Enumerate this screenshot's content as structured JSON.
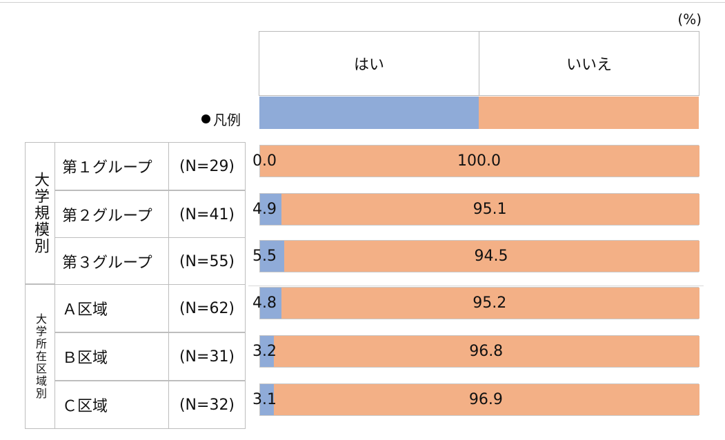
{
  "unit_label": "(%)",
  "legend_label": "凡例",
  "group_labels": {
    "scale": "大学規模別",
    "region": "大学所在区域別"
  },
  "colors": {
    "yes": "#8fabd8",
    "no": "#f3b086"
  },
  "chart_data": {
    "type": "bar",
    "stacked": true,
    "orientation": "horizontal",
    "xlim": [
      0,
      100
    ],
    "series": [
      {
        "name": "はい",
        "color": "#8fabd8"
      },
      {
        "name": "いいえ",
        "color": "#f3b086"
      }
    ],
    "rows": [
      {
        "category": "第１グループ",
        "n": "(N=29)",
        "yes": 0.0,
        "no": 100.0,
        "yes_label": "0.0",
        "no_label": "100.0"
      },
      {
        "category": "第２グループ",
        "n": "(N=41)",
        "yes": 4.9,
        "no": 95.1,
        "yes_label": "4.9",
        "no_label": "95.1"
      },
      {
        "category": "第３グループ",
        "n": "(N=55)",
        "yes": 5.5,
        "no": 94.5,
        "yes_label": "5.5",
        "no_label": "94.5"
      },
      {
        "category": "Ａ区域",
        "n": "(N=62)",
        "yes": 4.8,
        "no": 95.2,
        "yes_label": "4.8",
        "no_label": "95.2"
      },
      {
        "category": "Ｂ区域",
        "n": "(N=31)",
        "yes": 3.2,
        "no": 96.8,
        "yes_label": "3.2",
        "no_label": "96.8"
      },
      {
        "category": "Ｃ区域",
        "n": "(N=32)",
        "yes": 3.1,
        "no": 96.9,
        "yes_label": "3.1",
        "no_label": "96.9"
      }
    ]
  }
}
